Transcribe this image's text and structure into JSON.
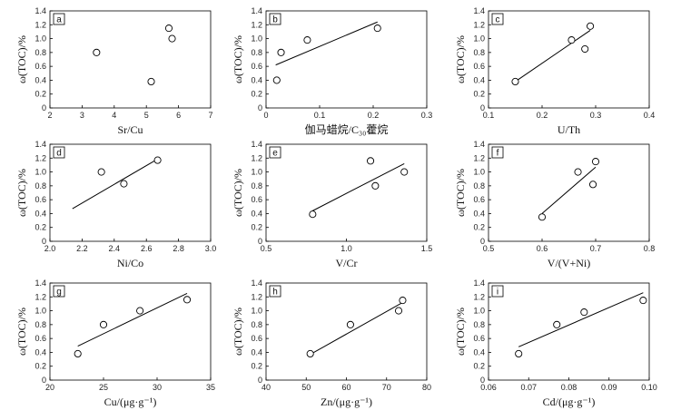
{
  "chart_data": [
    {
      "type": "scatter",
      "label": "a",
      "xlabel": "Sr/Cu",
      "ylabel": "ω(TOC)/%",
      "xlim": [
        2,
        7
      ],
      "ylim": [
        0,
        1.4
      ],
      "xticks": [
        "2",
        "3",
        "4",
        "5",
        "6",
        "7"
      ],
      "yticks": [
        "0",
        "0.2",
        "0.4",
        "0.6",
        "0.8",
        "1.0",
        "1.2",
        "1.4"
      ],
      "x": [
        3.45,
        5.15,
        5.7,
        5.8
      ],
      "y": [
        0.8,
        0.38,
        1.15,
        1.0
      ],
      "trendline": null
    },
    {
      "type": "scatter",
      "label": "b",
      "xlabel": "伽马蜡烷/C₃₀藿烷",
      "ylabel": "ω(TOC)/%",
      "xlim": [
        0,
        0.3
      ],
      "ylim": [
        0,
        1.4
      ],
      "xticks": [
        "0",
        "0.1",
        "0.2",
        "0.3"
      ],
      "yticks": [
        "0",
        "0.2",
        "0.4",
        "0.6",
        "0.8",
        "1.0",
        "1.2",
        "1.4"
      ],
      "x": [
        0.02,
        0.028,
        0.077,
        0.208
      ],
      "y": [
        0.4,
        0.8,
        0.98,
        1.15
      ],
      "trendline": [
        [
          0.018,
          0.62
        ],
        [
          0.208,
          1.24
        ]
      ]
    },
    {
      "type": "scatter",
      "label": "c",
      "xlabel": "U/Th",
      "ylabel": "ω(TOC)/%",
      "xlim": [
        0.1,
        0.4
      ],
      "ylim": [
        0,
        1.4
      ],
      "xticks": [
        "0.1",
        "0.2",
        "0.3",
        "0.4"
      ],
      "yticks": [
        "0",
        "0.2",
        "0.4",
        "0.6",
        "0.8",
        "1.0",
        "1.2",
        "1.4"
      ],
      "x": [
        0.15,
        0.255,
        0.28,
        0.29
      ],
      "y": [
        0.38,
        0.98,
        0.85,
        1.18
      ],
      "trendline": [
        [
          0.15,
          0.38
        ],
        [
          0.29,
          1.12
        ]
      ]
    },
    {
      "type": "scatter",
      "label": "d",
      "xlabel": "Ni/Co",
      "ylabel": "ω(TOC)/%",
      "xlim": [
        2.0,
        3.0
      ],
      "ylim": [
        0,
        1.4
      ],
      "xticks": [
        "2.0",
        "2.2",
        "2.4",
        "2.6",
        "2.8",
        "3.0"
      ],
      "yticks": [
        "0",
        "0.2",
        "0.4",
        "0.6",
        "0.8",
        "1.0",
        "1.2",
        "1.4"
      ],
      "x": [
        2.32,
        2.46,
        2.67
      ],
      "y": [
        1.0,
        0.83,
        1.17
      ],
      "trendline": [
        [
          2.14,
          0.47
        ],
        [
          2.68,
          1.2
        ]
      ]
    },
    {
      "type": "scatter",
      "label": "e",
      "xlabel": "V/Cr",
      "ylabel": "ω(TOC)/%",
      "xlim": [
        0.5,
        1.5
      ],
      "ylim": [
        0,
        1.4
      ],
      "xticks": [
        "0.5",
        "1.0",
        "1.5"
      ],
      "yticks": [
        "0",
        "0.2",
        "0.4",
        "0.6",
        "0.8",
        "1.0",
        "1.2",
        "1.4"
      ],
      "x": [
        0.79,
        1.15,
        1.18,
        1.36
      ],
      "y": [
        0.39,
        1.16,
        0.8,
        1.0
      ],
      "trendline": [
        [
          0.79,
          0.44
        ],
        [
          1.36,
          1.12
        ]
      ]
    },
    {
      "type": "scatter",
      "label": "f",
      "xlabel": "V/(V+Ni)",
      "ylabel": "ω(TOC)/%",
      "xlim": [
        0.5,
        0.8
      ],
      "ylim": [
        0,
        1.4
      ],
      "xticks": [
        "0.5",
        "0.6",
        "0.7",
        "0.8"
      ],
      "yticks": [
        "0",
        "0.2",
        "0.4",
        "0.6",
        "0.8",
        "1.0",
        "1.2",
        "1.4"
      ],
      "x": [
        0.6,
        0.667,
        0.695,
        0.7
      ],
      "y": [
        0.35,
        1.0,
        0.82,
        1.15
      ],
      "trendline": [
        [
          0.6,
          0.4
        ],
        [
          0.7,
          1.07
        ]
      ]
    },
    {
      "type": "scatter",
      "label": "g",
      "xlabel": "Cu/(μg·g⁻¹)",
      "ylabel": "ω(TOC)/%",
      "xlim": [
        20,
        35
      ],
      "ylim": [
        0,
        1.4
      ],
      "xticks": [
        "20",
        "25",
        "30",
        "35"
      ],
      "yticks": [
        "0",
        "0.2",
        "0.4",
        "0.6",
        "0.8",
        "1.0",
        "1.2",
        "1.4"
      ],
      "x": [
        22.6,
        25.0,
        28.4,
        32.8
      ],
      "y": [
        0.38,
        0.8,
        1.0,
        1.16
      ],
      "trendline": [
        [
          22.6,
          0.49
        ],
        [
          32.8,
          1.25
        ]
      ]
    },
    {
      "type": "scatter",
      "label": "h",
      "xlabel": "Zn/(μg·g⁻¹)",
      "ylabel": "ω(TOC)/%",
      "xlim": [
        40,
        80
      ],
      "ylim": [
        0,
        1.4
      ],
      "xticks": [
        "40",
        "50",
        "60",
        "70",
        "80"
      ],
      "yticks": [
        "0",
        "0.2",
        "0.4",
        "0.6",
        "0.8",
        "1.0",
        "1.2",
        "1.4"
      ],
      "x": [
        51.0,
        61.0,
        73.0,
        74.0
      ],
      "y": [
        0.38,
        0.8,
        1.0,
        1.15
      ],
      "trendline": [
        [
          51.0,
          0.37
        ],
        [
          74.0,
          1.12
        ]
      ]
    },
    {
      "type": "scatter",
      "label": "i",
      "xlabel": "Cd/(μg·g⁻¹)",
      "ylabel": "ω(TOC)/%",
      "xlim": [
        0.06,
        0.1
      ],
      "ylim": [
        0,
        1.4
      ],
      "xticks": [
        "0.06",
        "0.07",
        "0.08",
        "0.09",
        "0.10"
      ],
      "yticks": [
        "0",
        "0.2",
        "0.4",
        "0.6",
        "0.8",
        "1.0",
        "1.2",
        "1.4"
      ],
      "x": [
        0.0675,
        0.077,
        0.0838,
        0.0985
      ],
      "y": [
        0.38,
        0.8,
        0.98,
        1.15
      ],
      "trendline": [
        [
          0.0675,
          0.48
        ],
        [
          0.0985,
          1.26
        ]
      ]
    }
  ]
}
